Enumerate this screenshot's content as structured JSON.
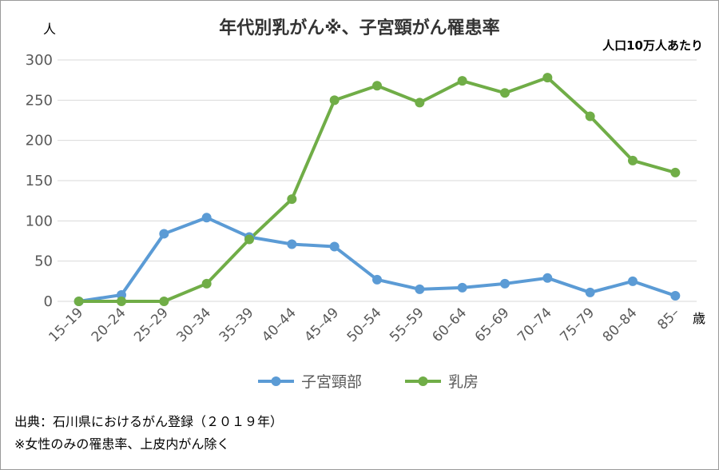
{
  "chart_data": {
    "type": "line",
    "title": "年代別乳がん※、子宮頸がん罹患率",
    "ylabel": "人",
    "xlabel": "歳",
    "note": "人口10万人あたり",
    "categories": [
      "15–19",
      "20–24",
      "25–29",
      "30–34",
      "35–39",
      "40–44",
      "45–49",
      "50–54",
      "55–59",
      "60–64",
      "65–69",
      "70–74",
      "75–79",
      "80–84",
      "85–"
    ],
    "ylim": [
      0,
      300
    ],
    "yticks": [
      0,
      50,
      100,
      150,
      200,
      250,
      300
    ],
    "grid": true,
    "legend": "bottom",
    "series": [
      {
        "name": "子宮頸部",
        "color": "#5b9bd5",
        "values": [
          0,
          8,
          84,
          104,
          80,
          71,
          68,
          27,
          15,
          17,
          22,
          29,
          11,
          25,
          7
        ]
      },
      {
        "name": "乳房",
        "color": "#70ad47",
        "values": [
          0,
          0,
          0,
          22,
          77,
          127,
          250,
          268,
          247,
          274,
          259,
          278,
          230,
          175,
          160
        ]
      }
    ]
  },
  "footer": {
    "source": "出典：石川県におけるがん登録（２０１９年）",
    "remark": "※女性のみの罹患率、上皮内がん除く"
  }
}
